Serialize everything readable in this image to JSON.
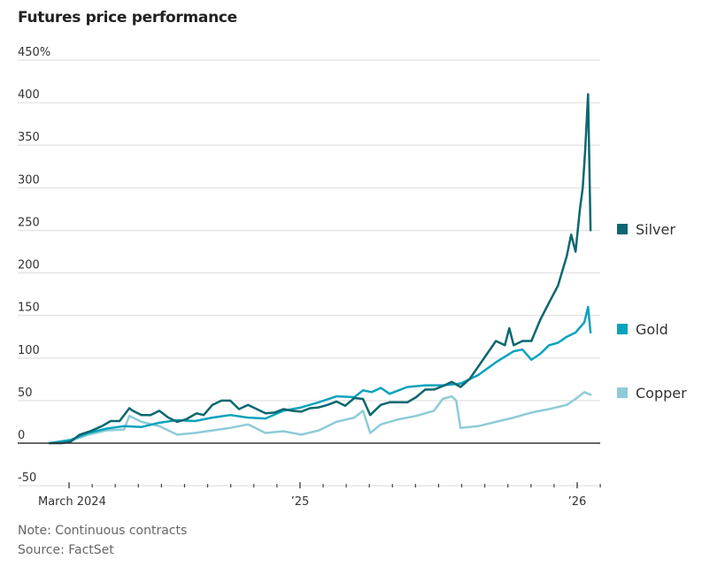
{
  "title": "Futures price performance",
  "note": "Note: Continuous contracts",
  "source": "Source: FactSet",
  "chart_data": {
    "type": "line",
    "title": "Futures price performance",
    "xlabel": "",
    "ylabel": "",
    "x_unit": "months since Jan 2024 (March 2024 = 2)",
    "xlim": [
      1.16,
      25.0
    ],
    "ylim": [
      -50,
      450
    ],
    "yticks": [
      -50,
      0,
      50,
      100,
      150,
      200,
      250,
      300,
      350,
      400,
      450
    ],
    "ytick_labels": [
      "-50",
      "0",
      "50",
      "100",
      "150",
      "200",
      "250",
      "300",
      "350",
      "400",
      "450%"
    ],
    "xticks_major": [
      {
        "x": 2,
        "label": "March 2024"
      },
      {
        "x": 12,
        "label": "’25"
      },
      {
        "x": 24,
        "label": "’26"
      }
    ],
    "xticks_minor": [
      3,
      4,
      5,
      6,
      7,
      8,
      9,
      10,
      11,
      13,
      14,
      15,
      16,
      17,
      18,
      19,
      20,
      21,
      22,
      23,
      25
    ],
    "grid": true,
    "legend_placement": "right, at line ends",
    "series": [
      {
        "name": "Silver",
        "color": "#0b6770",
        "x": [
          1.16,
          1.69,
          2.08,
          2.46,
          2.92,
          3.42,
          3.8,
          4.19,
          4.61,
          4.76,
          5.14,
          5.53,
          5.91,
          6.3,
          6.68,
          7.06,
          7.52,
          7.83,
          8.21,
          8.6,
          8.98,
          9.36,
          9.75,
          10.13,
          10.51,
          10.9,
          11.28,
          11.66,
          12.05,
          12.43,
          12.81,
          13.2,
          13.58,
          13.96,
          14.35,
          14.73,
          15.04,
          15.5,
          15.88,
          16.26,
          16.65,
          17.03,
          17.42,
          17.8,
          18.18,
          18.57,
          18.95,
          19.33,
          19.72,
          20.1,
          20.48,
          20.87,
          21.06,
          21.25,
          21.63,
          22.02,
          22.4,
          22.78,
          23.17,
          23.55,
          23.74,
          23.93,
          24.12,
          24.24,
          24.35,
          24.47,
          24.58
        ],
        "values": [
          0,
          0,
          2,
          10,
          14,
          20,
          26,
          26,
          41,
          38,
          33,
          33,
          38,
          30,
          25,
          28,
          35,
          33,
          45,
          50,
          50,
          40,
          45,
          40,
          35,
          36,
          40,
          38,
          37,
          41,
          42,
          45,
          49,
          44,
          53,
          52,
          33,
          45,
          48,
          48,
          48,
          54,
          63,
          63,
          67,
          72,
          66,
          75,
          90,
          105,
          120,
          115,
          135,
          115,
          120,
          120,
          145,
          165,
          185,
          220,
          245,
          225,
          275,
          300,
          345,
          410,
          250
        ]
      },
      {
        "name": "Gold",
        "color": "#0aa3bd",
        "x": [
          1.16,
          2.08,
          2.84,
          3.61,
          4.38,
          5.14,
          5.91,
          6.68,
          7.45,
          8.21,
          8.98,
          9.75,
          10.51,
          11.28,
          12.05,
          12.81,
          13.58,
          14.35,
          14.73,
          15.11,
          15.5,
          15.88,
          16.65,
          17.42,
          18.18,
          18.95,
          19.72,
          20.48,
          21.25,
          21.63,
          22.02,
          22.4,
          22.78,
          23.17,
          23.55,
          23.93,
          24.31,
          24.47,
          24.58
        ],
        "values": [
          0,
          4,
          12,
          17,
          20,
          19,
          24,
          27,
          26,
          30,
          33,
          30,
          29,
          38,
          42,
          48,
          55,
          54,
          62,
          60,
          65,
          58,
          66,
          68,
          68,
          70,
          80,
          95,
          108,
          110,
          98,
          105,
          115,
          118,
          125,
          130,
          142,
          160,
          130
        ]
      },
      {
        "name": "Copper",
        "color": "#8ecbd8",
        "x": [
          1.16,
          2.08,
          2.84,
          3.61,
          4.38,
          4.61,
          5.14,
          5.91,
          6.68,
          7.45,
          8.21,
          8.98,
          9.75,
          10.51,
          11.28,
          12.05,
          12.81,
          13.58,
          14.35,
          14.73,
          15.04,
          15.5,
          16.26,
          17.03,
          17.8,
          18.18,
          18.57,
          18.76,
          18.95,
          19.72,
          20.48,
          21.25,
          22.02,
          22.78,
          23.55,
          23.93,
          24.31,
          24.58
        ],
        "values": [
          0,
          3,
          10,
          15,
          16,
          32,
          25,
          20,
          10,
          12,
          15,
          18,
          22,
          12,
          14,
          10,
          15,
          25,
          30,
          38,
          12,
          22,
          28,
          32,
          38,
          52,
          55,
          50,
          18,
          20,
          25,
          30,
          36,
          40,
          45,
          52,
          60,
          57
        ]
      }
    ]
  }
}
